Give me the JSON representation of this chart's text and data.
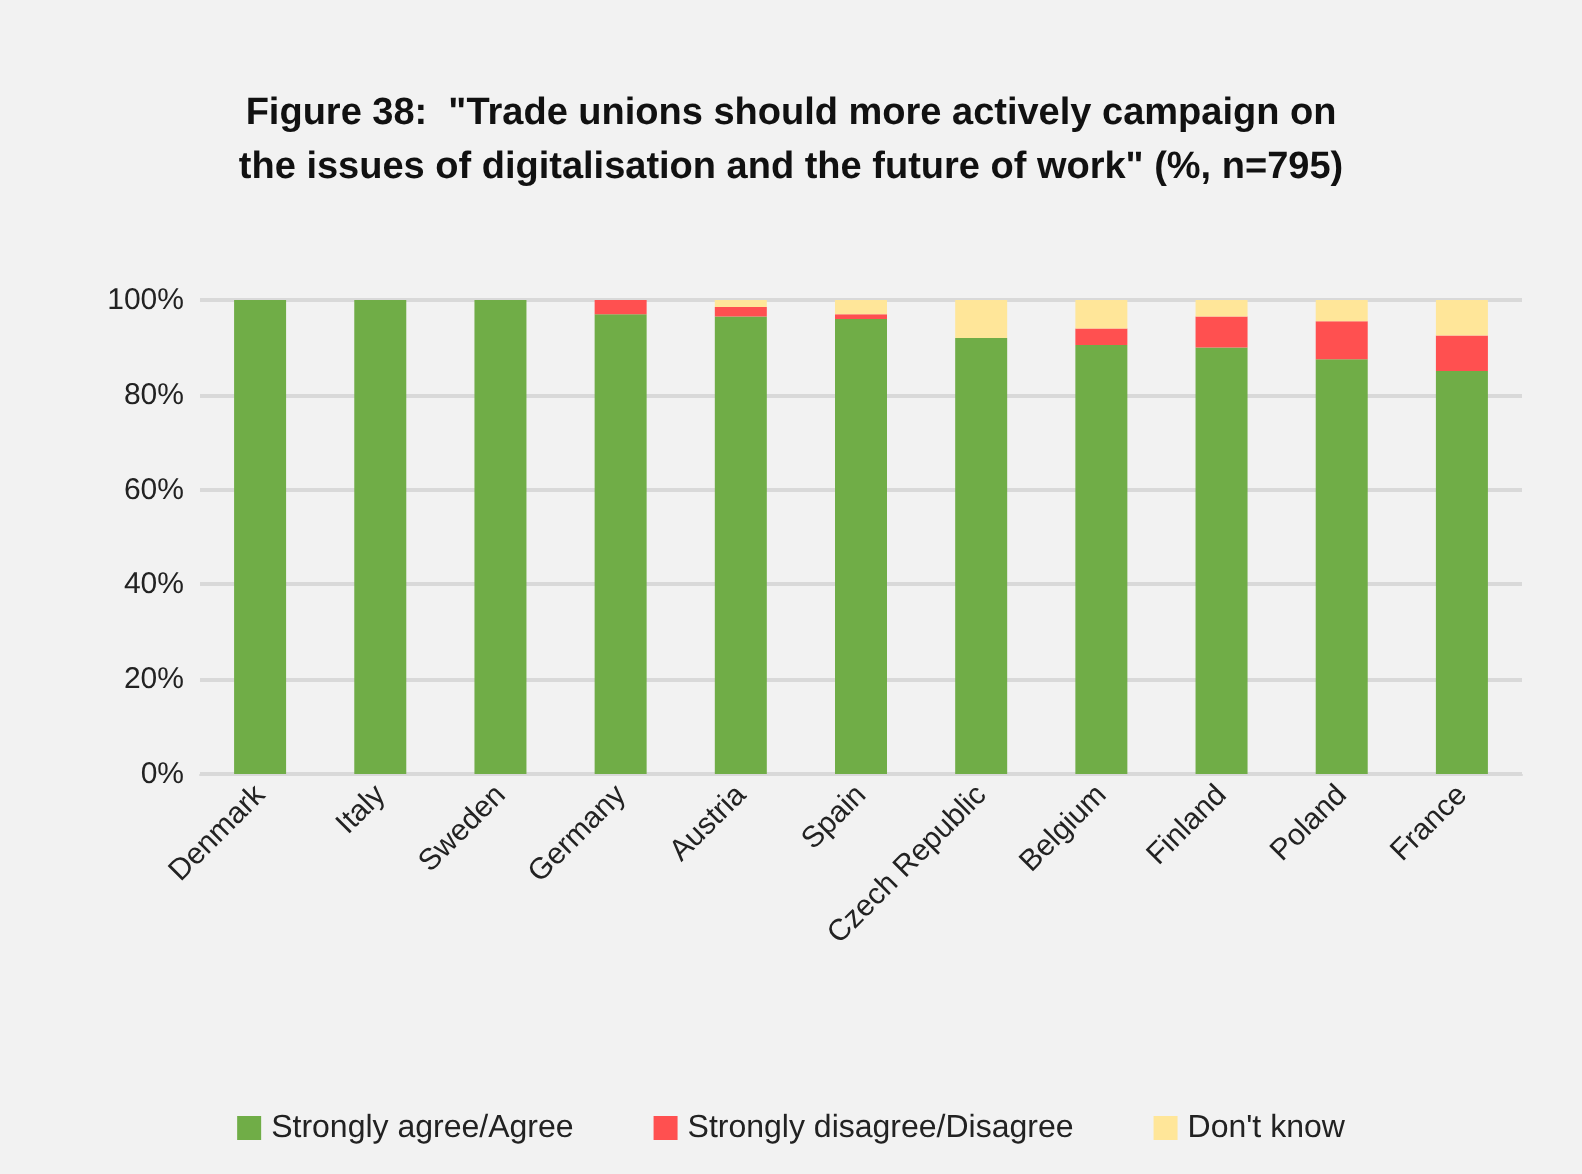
{
  "chart_data": {
    "type": "bar",
    "stacked": true,
    "title": "Figure 38:  \"Trade unions should more actively campaign on\nthe issues of digitalisation and the future of work\" (%, n=795)",
    "categories": [
      "Denmark",
      "Italy",
      "Sweden",
      "Germany",
      "Austria",
      "Spain",
      "Czech Republic",
      "Belgium",
      "Finland",
      "Poland",
      "France"
    ],
    "series": [
      {
        "name": "Strongly agree/Agree",
        "color": "#70ad47",
        "values": [
          100,
          100,
          100,
          97,
          96.5,
          96,
          92,
          90.5,
          90,
          87.5,
          85
        ]
      },
      {
        "name": "Strongly disagree/Disagree",
        "color": "#ff5050",
        "values": [
          0,
          0,
          0,
          3,
          2,
          1,
          0,
          3.5,
          6.5,
          8,
          7.5
        ]
      },
      {
        "name": "Don't know",
        "color": "#ffe699",
        "values": [
          0,
          0,
          0,
          0,
          1.5,
          3,
          8,
          6,
          3.5,
          4.5,
          7.5
        ]
      }
    ],
    "ylim": [
      0,
      100
    ],
    "yticks": [
      {
        "value": 0,
        "label": "0%"
      },
      {
        "value": 20,
        "label": "20%"
      },
      {
        "value": 40,
        "label": "40%"
      },
      {
        "value": 60,
        "label": "60%"
      },
      {
        "value": 80,
        "label": "80%"
      },
      {
        "value": 100,
        "label": "100%"
      }
    ],
    "grid": "y",
    "legend": "bottom"
  }
}
